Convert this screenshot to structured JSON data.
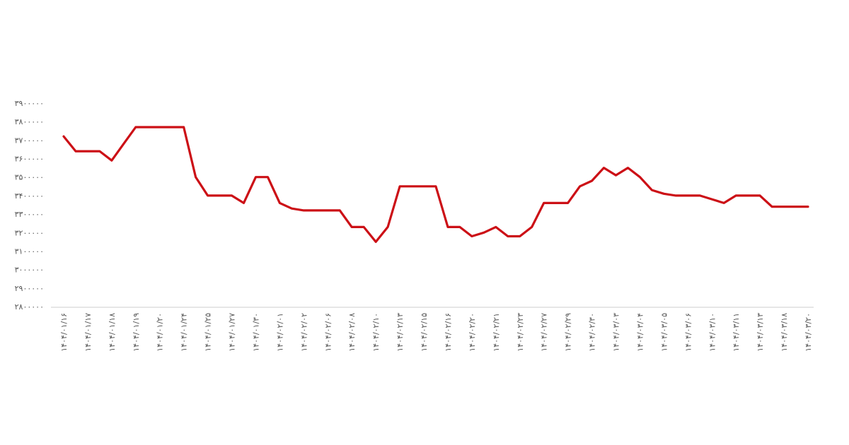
{
  "chart_data": {
    "type": "line",
    "title": "",
    "xlabel": "",
    "ylabel": "",
    "ylim": [
      2800000,
      3900000
    ],
    "grid": false,
    "line_color": "#cc1016",
    "y_ticks": [
      "۲۸۰۰۰۰۰",
      "۲۹۰۰۰۰۰",
      "۳۰۰۰۰۰۰",
      "۳۱۰۰۰۰۰",
      "۳۲۰۰۰۰۰",
      "۳۳۰۰۰۰۰",
      "۳۴۰۰۰۰۰",
      "۳۵۰۰۰۰۰",
      "۳۶۰۰۰۰۰",
      "۳۷۰۰۰۰۰",
      "۳۸۰۰۰۰۰",
      "۳۹۰۰۰۰۰"
    ],
    "x_tick_labels": [
      "۱۴۰۴/۰۱/۱۶",
      "۱۴۰۴/۰۱/۱۷",
      "۱۴۰۴/۰۱/۱۸",
      "۱۴۰۴/۰۱/۱۹",
      "۱۴۰۴/۰۱/۲۰",
      "۱۴۰۴/۰۱/۲۴",
      "۱۴۰۴/۰۱/۲۵",
      "۱۴۰۴/۰۱/۲۷",
      "۱۴۰۴/۰۱/۳۰",
      "۱۴۰۴/۰۲/۰۱",
      "۱۴۰۴/۰۲/۰۲",
      "۱۴۰۴/۰۲/۰۶",
      "۱۴۰۴/۰۲/۰۸",
      "۱۴۰۴/۰۲/۱۰",
      "۱۴۰۴/۰۲/۱۳",
      "۱۴۰۴/۰۲/۱۵",
      "۱۴۰۴/۰۲/۱۶",
      "۱۴۰۴/۰۲/۲۰",
      "۱۴۰۴/۰۲/۲۱",
      "۱۴۰۴/۰۲/۲۳",
      "۱۴۰۴/۰۲/۲۷",
      "۱۴۰۴/۰۲/۲۹",
      "۱۴۰۴/۰۲/۳۰",
      "۱۴۰۴/۰۳/۰۳",
      "۱۴۰۴/۰۳/۰۴",
      "۱۴۰۴/۰۳/۰۵",
      "۱۴۰۴/۰۳/۰۶",
      "۱۴۰۴/۰۳/۱۰",
      "۱۴۰۴/۰۳/۱۱",
      "۱۴۰۴/۰۳/۱۳",
      "۱۴۰۴/۰۳/۱۸",
      "۱۴۰۴/۰۳/۲۰"
    ],
    "values": [
      3720000,
      3640000,
      3640000,
      3640000,
      3590000,
      3680000,
      3770000,
      3770000,
      3770000,
      3770000,
      3770000,
      3500000,
      3400000,
      3400000,
      3400000,
      3360000,
      3500000,
      3500000,
      3360000,
      3330000,
      3320000,
      3320000,
      3320000,
      3320000,
      3230000,
      3230000,
      3150000,
      3230000,
      3450000,
      3450000,
      3450000,
      3450000,
      3230000,
      3230000,
      3180000,
      3200000,
      3230000,
      3180000,
      3180000,
      3230000,
      3360000,
      3360000,
      3360000,
      3450000,
      3480000,
      3550000,
      3510000,
      3550000,
      3500000,
      3430000,
      3410000,
      3400000,
      3400000,
      3400000,
      3380000,
      3360000,
      3400000,
      3400000,
      3400000,
      3340000,
      3340000,
      3340000,
      3340000
    ]
  }
}
